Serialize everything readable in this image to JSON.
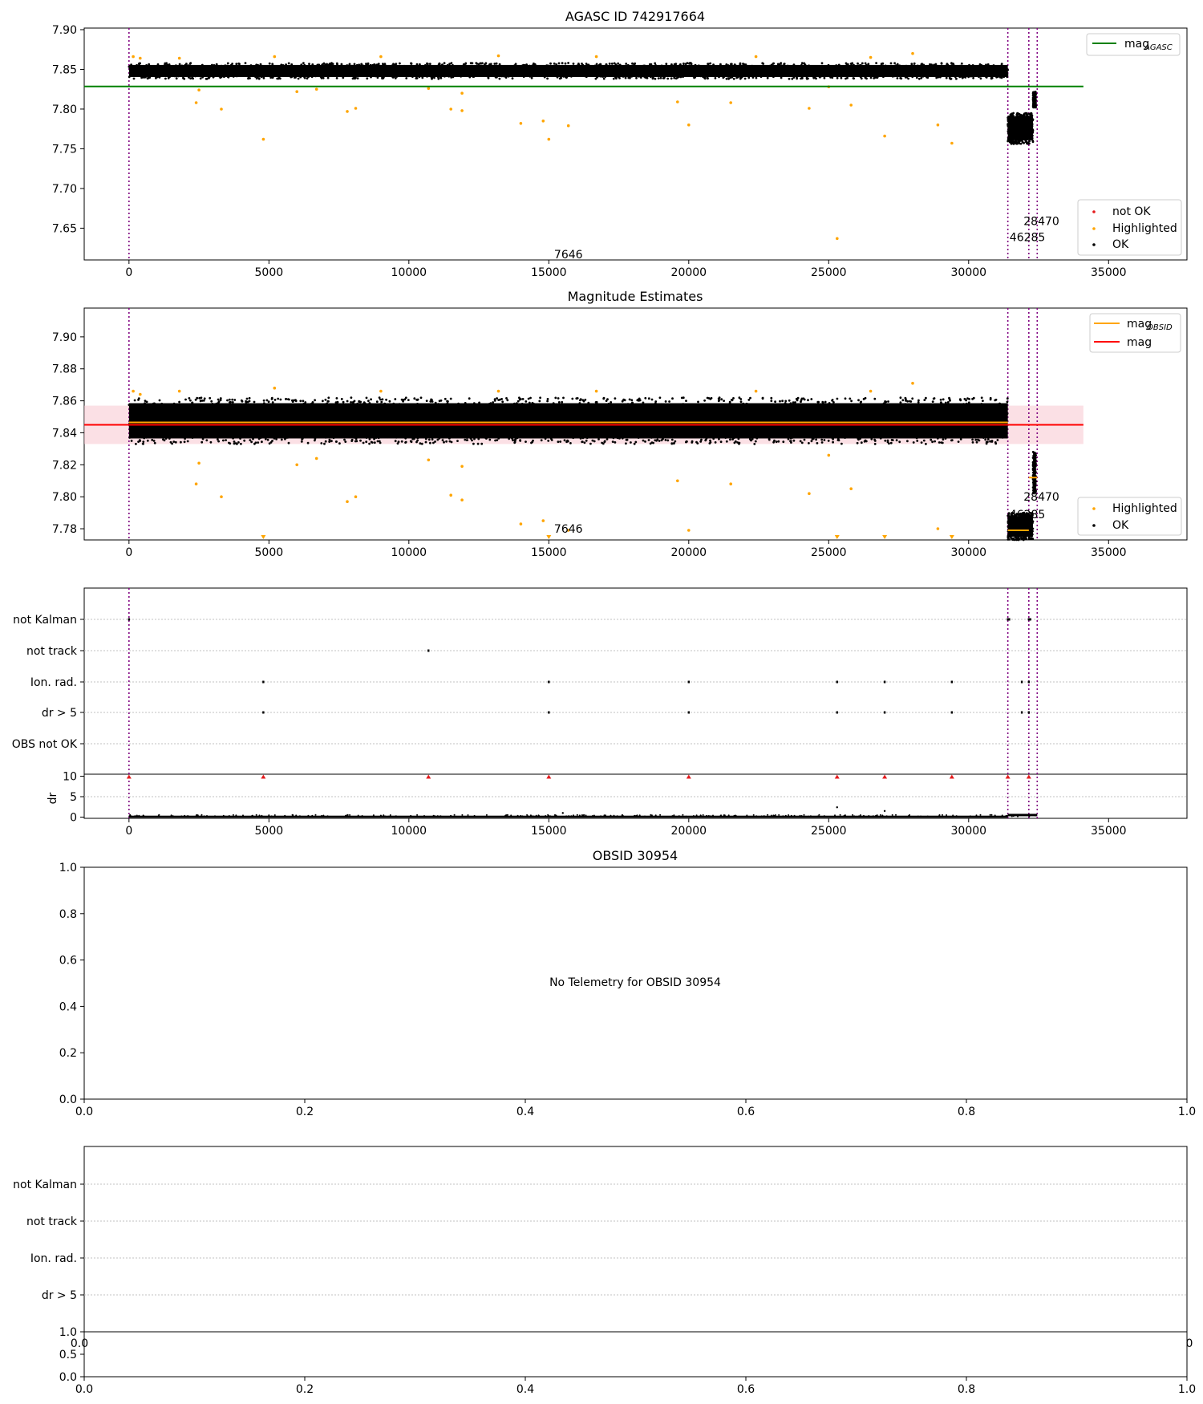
{
  "colors": {
    "ok": "#000000",
    "highlighted": "#ffa500",
    "not_ok": "#e41a1c",
    "agasc_line": "#008000",
    "mag_line": "#ff0000",
    "obsid_line": "#ffa500",
    "band": "#f7c6cf",
    "event_line": "#800080",
    "grid": "#c0c0c0"
  },
  "chart_data": [
    {
      "id": "p1",
      "type": "scatter",
      "title": "AGASC ID 742917664",
      "xlim": [
        -1600,
        37800
      ],
      "ylim": [
        7.61,
        7.902
      ],
      "xticks": [
        "0",
        "5000",
        "10000",
        "15000",
        "20000",
        "25000",
        "30000",
        "35000"
      ],
      "xtick_values": [
        0,
        5000,
        10000,
        15000,
        20000,
        25000,
        30000,
        35000
      ],
      "yticks": [
        "7.65",
        "7.70",
        "7.75",
        "7.80",
        "7.85",
        "7.90"
      ],
      "ytick_values": [
        7.65,
        7.7,
        7.75,
        7.8,
        7.85,
        7.9
      ],
      "ok_clusters": [
        {
          "x": [
            0,
            31400
          ],
          "y": [
            7.838,
            7.858
          ],
          "n": 1800
        },
        {
          "x": [
            31400,
            32300
          ],
          "y": [
            7.756,
            7.795
          ],
          "n": 420
        },
        {
          "x": [
            32300,
            32400
          ],
          "y": [
            7.802,
            7.822
          ],
          "n": 160
        }
      ],
      "highlighted": [
        [
          150,
          7.866
        ],
        [
          400,
          7.864
        ],
        [
          1800,
          7.864
        ],
        [
          2400,
          7.808
        ],
        [
          2500,
          7.824
        ],
        [
          3300,
          7.8
        ],
        [
          4800,
          7.762
        ],
        [
          5200,
          7.866
        ],
        [
          6000,
          7.822
        ],
        [
          6700,
          7.825
        ],
        [
          7800,
          7.797
        ],
        [
          8100,
          7.801
        ],
        [
          10700,
          7.826
        ],
        [
          11500,
          7.8
        ],
        [
          11900,
          7.798
        ],
        [
          11900,
          7.82
        ],
        [
          14000,
          7.782
        ],
        [
          14800,
          7.785
        ],
        [
          15000,
          7.762
        ],
        [
          15700,
          7.779
        ],
        [
          19600,
          7.809
        ],
        [
          20000,
          7.78
        ],
        [
          21500,
          7.808
        ],
        [
          24300,
          7.801
        ],
        [
          25000,
          7.828
        ],
        [
          25300,
          7.637
        ],
        [
          25800,
          7.805
        ],
        [
          27000,
          7.766
        ],
        [
          28000,
          7.87
        ],
        [
          28900,
          7.78
        ],
        [
          29400,
          7.757
        ],
        [
          13200,
          7.867
        ],
        [
          16700,
          7.866
        ],
        [
          22400,
          7.866
        ],
        [
          26500,
          7.865
        ],
        [
          9000,
          7.866
        ]
      ],
      "hlines": [
        {
          "label": "mag_AGASC",
          "y": 7.8285,
          "x": [
            -1600,
            34100
          ],
          "color": "green"
        }
      ],
      "vlines": [
        0,
        31400,
        32150,
        32450
      ],
      "annotations": [
        {
          "text": "7646",
          "x": 15700,
          "y": 7.617
        },
        {
          "text": "28470",
          "x": 32600,
          "y": 7.659
        },
        {
          "text": "46285",
          "x": 32100,
          "y": 7.639
        }
      ],
      "legend_lines": [
        {
          "text": "mag",
          "sub": "AGASC",
          "color": "#008000"
        }
      ],
      "legend_points": [
        {
          "text": "not OK",
          "color": "#e41a1c"
        },
        {
          "text": "Highlighted",
          "color": "#ffa500"
        },
        {
          "text": "OK",
          "color": "#000000"
        }
      ]
    },
    {
      "id": "p2",
      "type": "scatter",
      "title": "Magnitude Estimates",
      "xlim": [
        -1600,
        37800
      ],
      "ylim": [
        7.773,
        7.918
      ],
      "xticks": [
        "0",
        "5000",
        "10000",
        "15000",
        "20000",
        "25000",
        "30000",
        "35000"
      ],
      "xtick_values": [
        0,
        5000,
        10000,
        15000,
        20000,
        25000,
        30000,
        35000
      ],
      "yticks": [
        "7.78",
        "7.80",
        "7.82",
        "7.84",
        "7.86",
        "7.88",
        "7.90"
      ],
      "ytick_values": [
        7.78,
        7.8,
        7.82,
        7.84,
        7.86,
        7.88,
        7.9
      ],
      "band": {
        "x": [
          -1600,
          34100
        ],
        "y": [
          7.833,
          7.857
        ]
      },
      "ok_clusters": [
        {
          "x": [
            0,
            31400
          ],
          "y": [
            7.833,
            7.862
          ],
          "n": 2600
        },
        {
          "x": [
            31400,
            32300
          ],
          "y": [
            7.773,
            7.79
          ],
          "n": 420
        },
        {
          "x": [
            32300,
            32400
          ],
          "y": [
            7.802,
            7.828
          ],
          "n": 160
        }
      ],
      "highlighted": [
        [
          150,
          7.866
        ],
        [
          400,
          7.864
        ],
        [
          1800,
          7.866
        ],
        [
          2400,
          7.808
        ],
        [
          2500,
          7.821
        ],
        [
          3300,
          7.8
        ],
        [
          5200,
          7.868
        ],
        [
          6000,
          7.82
        ],
        [
          6700,
          7.824
        ],
        [
          7800,
          7.797
        ],
        [
          8100,
          7.8
        ],
        [
          10700,
          7.823
        ],
        [
          11500,
          7.801
        ],
        [
          11900,
          7.798
        ],
        [
          11900,
          7.819
        ],
        [
          14000,
          7.783
        ],
        [
          14800,
          7.785
        ],
        [
          15700,
          7.779
        ],
        [
          19600,
          7.81
        ],
        [
          20000,
          7.779
        ],
        [
          21500,
          7.808
        ],
        [
          24300,
          7.802
        ],
        [
          25000,
          7.826
        ],
        [
          25800,
          7.805
        ],
        [
          28000,
          7.871
        ],
        [
          28900,
          7.78
        ],
        [
          13200,
          7.866
        ],
        [
          16700,
          7.866
        ],
        [
          22400,
          7.866
        ],
        [
          26500,
          7.866
        ],
        [
          9000,
          7.866
        ]
      ],
      "offscale_down": [
        4800,
        15000,
        25300,
        27000,
        29400
      ],
      "hlines": [
        {
          "label": "mag",
          "y": 7.845,
          "x": [
            -1600,
            34100
          ],
          "color": "red"
        },
        {
          "label": "mag_OBSID",
          "y": 7.8465,
          "x": [
            0,
            31400
          ],
          "color": "orange"
        },
        {
          "label": "mag_OBSID",
          "y": 7.779,
          "x": [
            31400,
            32150
          ],
          "color": "orange"
        },
        {
          "label": "mag_OBSID",
          "y": 7.812,
          "x": [
            32150,
            32450
          ],
          "color": "orange"
        }
      ],
      "vlines": [
        0,
        31400,
        32150,
        32450
      ],
      "annotations": [
        {
          "text": "7646",
          "x": 15700,
          "y": 7.78
        },
        {
          "text": "28470",
          "x": 32600,
          "y": 7.8
        },
        {
          "text": "46285",
          "x": 32100,
          "y": 7.789
        }
      ],
      "legend_lines": [
        {
          "text": "mag",
          "sub": "OBSID",
          "color": "#ffa500"
        },
        {
          "text": "mag",
          "sub": "",
          "color": "#ff0000"
        }
      ],
      "legend_points": [
        {
          "text": "Highlighted",
          "color": "#ffa500"
        },
        {
          "text": "OK",
          "color": "#000000"
        }
      ]
    },
    {
      "id": "p3",
      "type": "scatter",
      "xlim": [
        -1600,
        37800
      ],
      "xticks": [
        "0",
        "5000",
        "10000",
        "15000",
        "20000",
        "25000",
        "30000",
        "35000"
      ],
      "xtick_values": [
        0,
        5000,
        10000,
        15000,
        20000,
        25000,
        30000,
        35000
      ],
      "flag_categories": [
        "not Kalman",
        "not track",
        "Ion. rad.",
        "dr > 5",
        "OBS not OK"
      ],
      "flag_points": {
        "not Kalman": [
          0,
          31400,
          31450,
          32150,
          32200
        ],
        "not track": [
          10700
        ],
        "Ion. rad.": [
          4800,
          15000,
          20000,
          25300,
          27000,
          29400,
          31900,
          32150
        ],
        "dr > 5": [
          4800,
          15000,
          20000,
          25300,
          27000,
          29400,
          31900,
          32150
        ],
        "OBS not OK": []
      },
      "dr_ylabel": "dr",
      "dr_ylim": [
        -0.3,
        10.5
      ],
      "dr_yticks": [
        "0",
        "5",
        "10"
      ],
      "dr_ytick_values": [
        0,
        5,
        10
      ],
      "dr_red": [
        0,
        4800,
        10700,
        15000,
        20000,
        25300,
        27000,
        29400,
        31400,
        32150
      ],
      "dr_extra": [
        [
          25300,
          2.4
        ],
        [
          27000,
          1.5
        ],
        [
          15500,
          1.0
        ]
      ],
      "vlines": [
        0,
        31400,
        32150,
        32450
      ]
    },
    {
      "id": "p4",
      "type": "scatter",
      "title": "OBSID 30954",
      "xlim": [
        0,
        1
      ],
      "ylim": [
        0,
        1
      ],
      "xticks": [
        "0.0",
        "0.2",
        "0.4",
        "0.6",
        "0.8",
        "1.0"
      ],
      "yticks": [
        "0.0",
        "0.2",
        "0.4",
        "0.6",
        "0.8",
        "1.0"
      ],
      "message": "No Telemetry for OBSID 30954"
    },
    {
      "id": "p5",
      "type": "scatter",
      "flag_categories": [
        "not Kalman",
        "not track",
        "Ion. rad.",
        "dr > 5"
      ],
      "overlap_ticks": [
        "0.0",
        "0"
      ],
      "small_yticks": [
        "0.0",
        "0.5",
        "1.0"
      ],
      "xticks": [
        "0.0",
        "0.2",
        "0.4",
        "0.6",
        "0.8",
        "1.0"
      ]
    }
  ]
}
